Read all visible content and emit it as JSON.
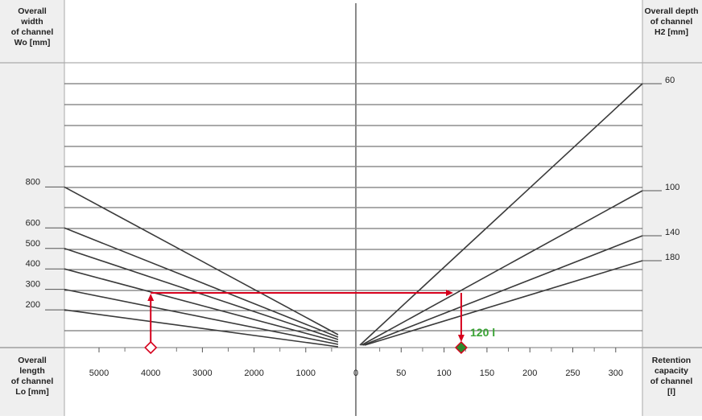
{
  "labels": {
    "top_left": [
      "Overall",
      "width",
      "of channel",
      "Wo [mm]"
    ],
    "top_right": [
      "Overall depth",
      "of channel",
      "H2 [mm]"
    ],
    "bottom_left": [
      "Overall",
      "length",
      "of channel",
      "Lo [mm]"
    ],
    "bottom_right": [
      "Retention",
      "capacity",
      "of channel",
      "[l]"
    ]
  },
  "colors": {
    "panel": "#efefef",
    "grid": "#555555",
    "line": "#3a3a3a",
    "arrow": "#d6001c",
    "result": "#3aa335",
    "result_fill": "#2e8b2e"
  },
  "result_label": "120 l",
  "chart_data": {
    "type": "line",
    "left_axis": {
      "label": "Overall length of channel Lo [mm]",
      "tick_labels": [
        "5000",
        "4000",
        "3000",
        "2000",
        "1000",
        "0"
      ],
      "ticks": [
        5000,
        4000,
        3000,
        2000,
        1000,
        0
      ],
      "reversed": true,
      "width_label": "Overall width of channel Wo [mm]",
      "width_tick_labels": [
        "800",
        "600",
        "500",
        "400",
        "300",
        "200"
      ],
      "width_ticks": [
        800,
        600,
        500,
        400,
        300,
        200
      ]
    },
    "right_axis": {
      "label": "Retention capacity of channel [l]",
      "tick_labels": [
        "0",
        "50",
        "100",
        "150",
        "200",
        "250",
        "300"
      ],
      "ticks": [
        0,
        50,
        100,
        150,
        200,
        250,
        300
      ],
      "depth_label": "Overall depth of channel H2 [mm]",
      "depth_tick_labels": [
        "60",
        "100",
        "140",
        "180"
      ],
      "depth_ticks": [
        60,
        100,
        140,
        180
      ]
    },
    "example": {
      "length_mm": 4000,
      "width_mm": 300,
      "depth_mm": 60,
      "retention_l": 120
    },
    "grid": true
  }
}
